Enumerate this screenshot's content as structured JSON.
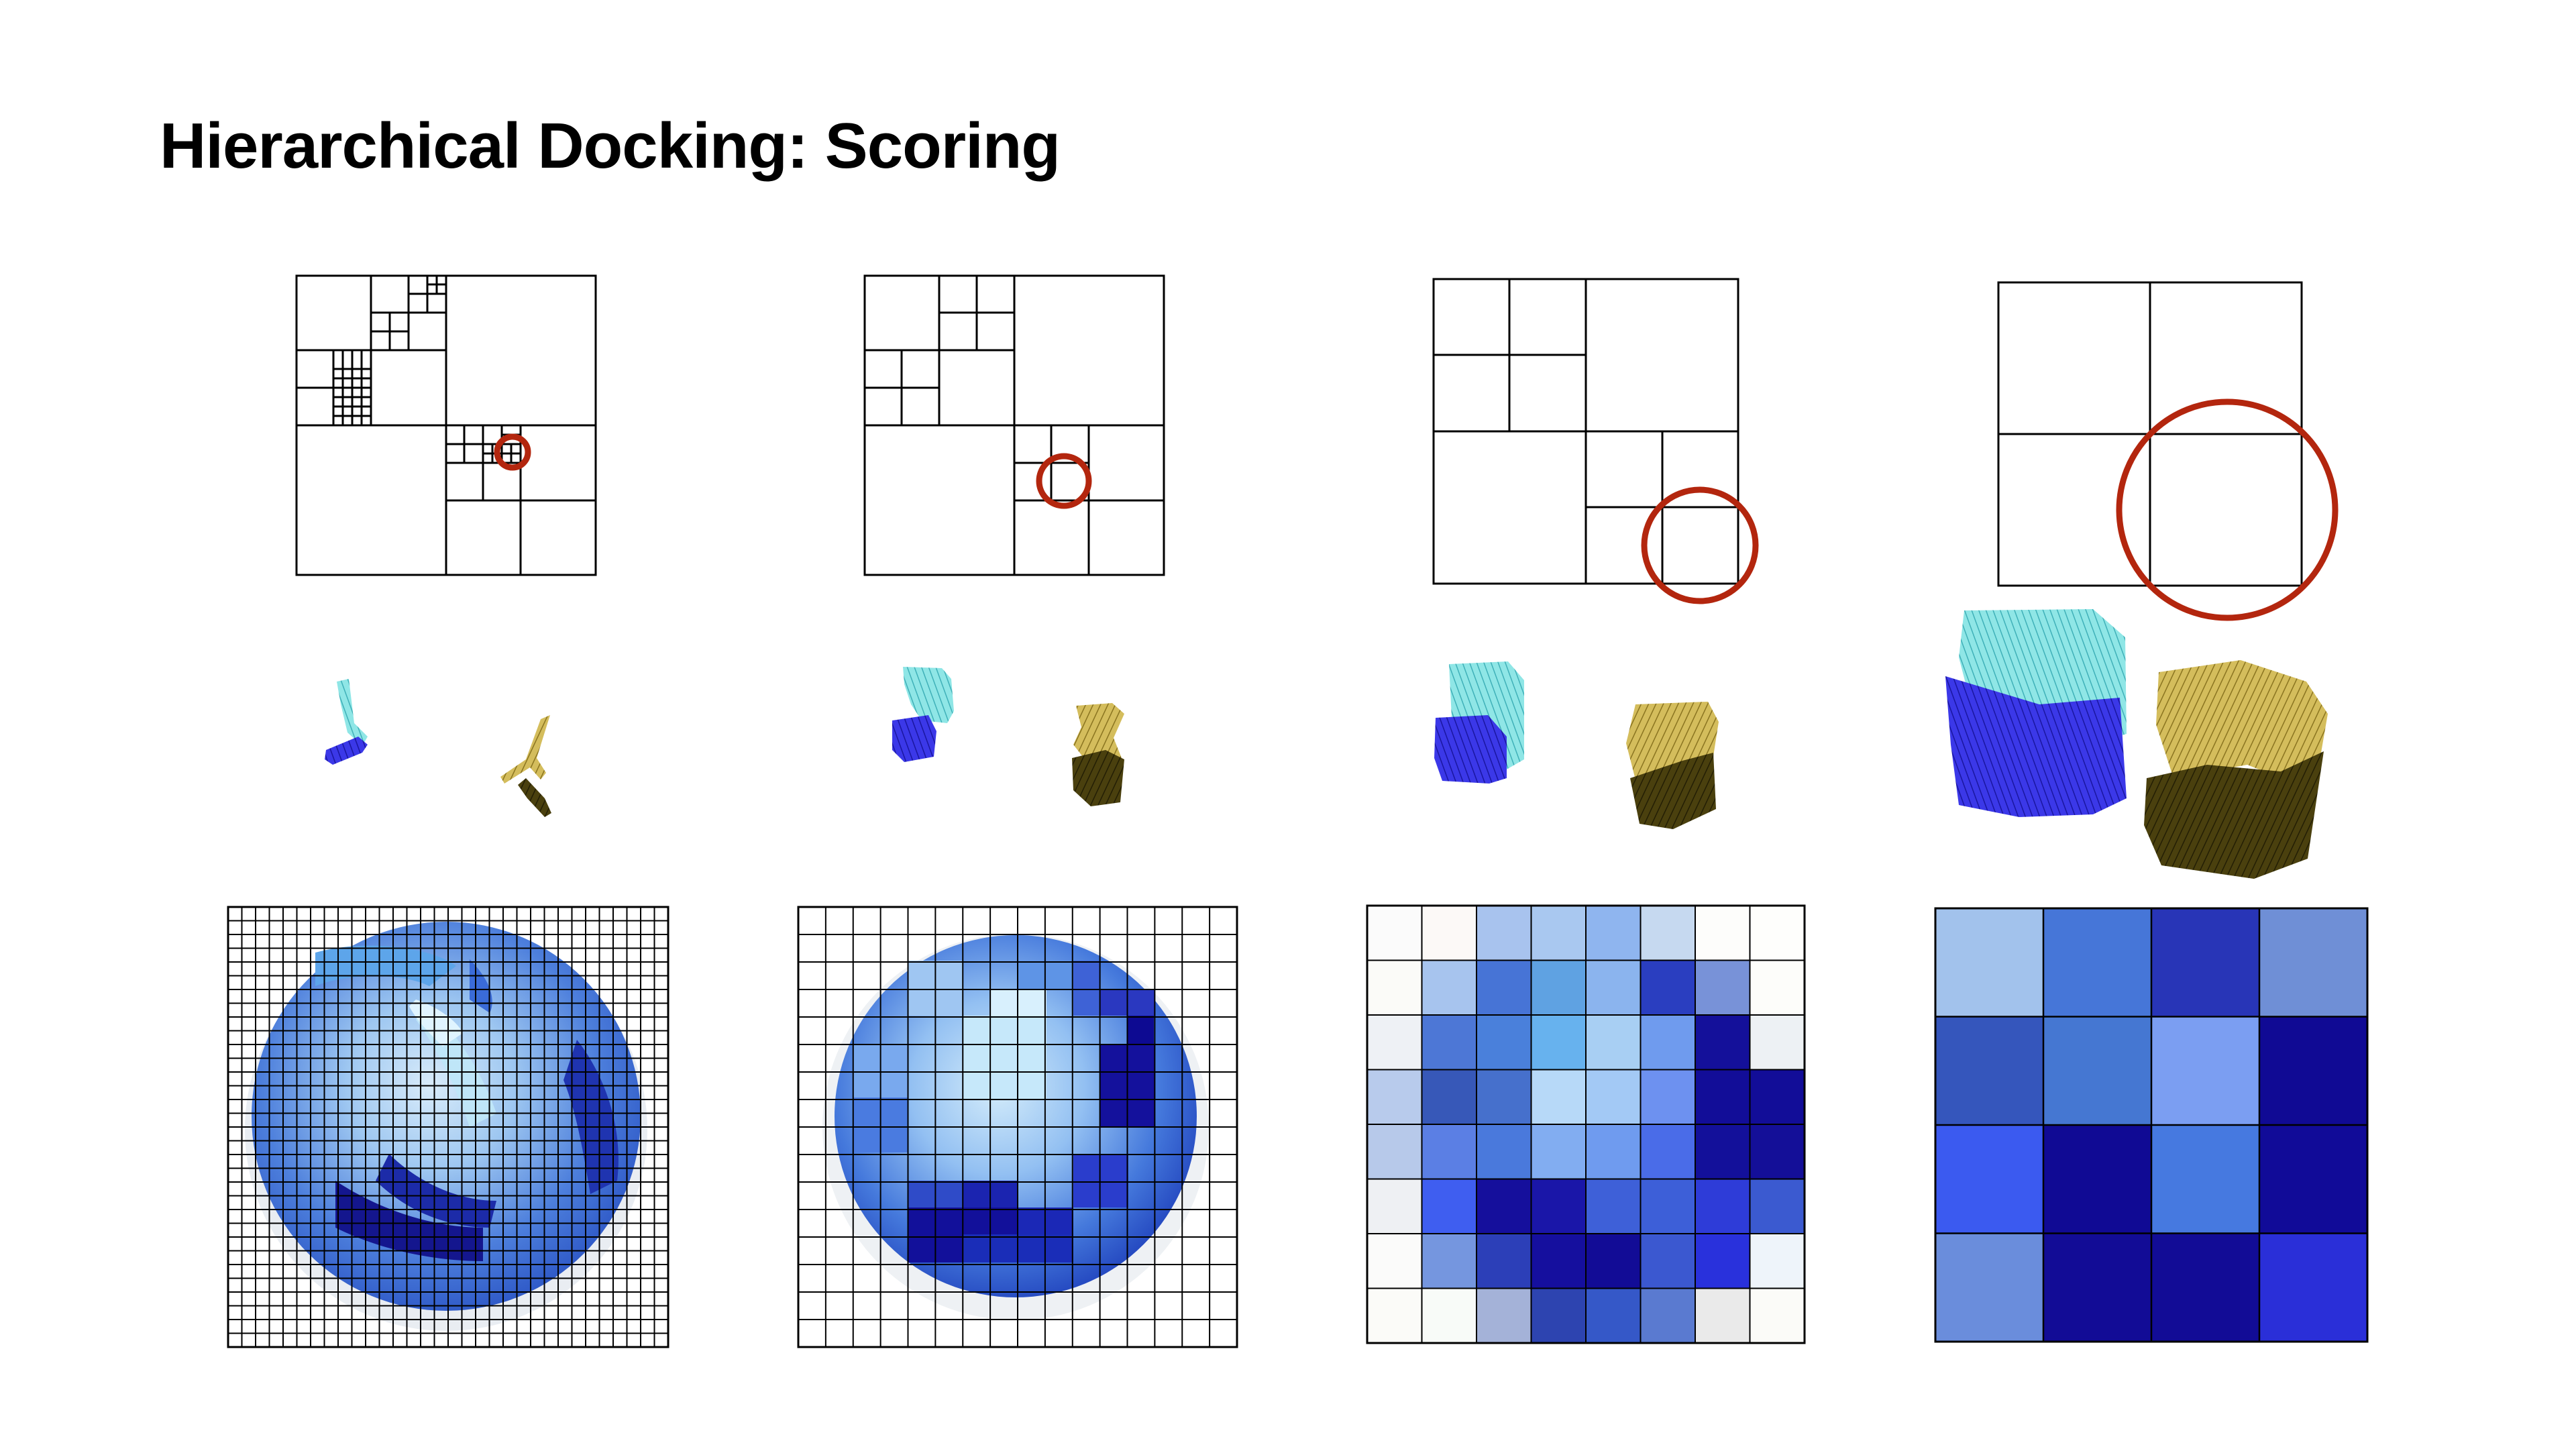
{
  "slide": {
    "title": "Hierarchical Docking: Scoring"
  },
  "colors": {
    "highlight_circle": "#b3260e",
    "receptor_light": "#7fe0e0",
    "receptor_dark": "#2a25d6",
    "ligand_light": "#c9b048",
    "ligand_dark": "#3a3208",
    "grid_line": "#000000"
  },
  "columns": [
    {
      "level": "finest",
      "octree_highlight": "small circle",
      "score_grid_cells": 32
    },
    {
      "level": "fine",
      "octree_highlight": "small circle",
      "score_grid_cells": 16
    },
    {
      "level": "medium",
      "octree_highlight": "medium circle",
      "score_grid_cells": 8
    },
    {
      "level": "coarse",
      "octree_highlight": "large circle",
      "score_grid_cells": 4
    }
  ],
  "score_grids": {
    "grid8": [
      [
        "#fbfbfb",
        "#fcf9f7",
        "#a8c3ee",
        "#a9c8f0",
        "#8fb5ef",
        "#c6d9f0",
        "#fdfdfb",
        "#fefefc"
      ],
      [
        "#fbfbf8",
        "#a7c4ee",
        "#4774d6",
        "#5fa2e2",
        "#8bb4ee",
        "#2a3ec0",
        "#7892d8",
        "#fdfdfa"
      ],
      [
        "#eef1f5",
        "#4d77d6",
        "#4a80db",
        "#67b2ee",
        "#a8cff3",
        "#6f9bee",
        "#14109a",
        "#edf1f4"
      ],
      [
        "#b8cbec",
        "#3758b8",
        "#4670cc",
        "#b7d9f8",
        "#a3c9f5",
        "#6d91f0",
        "#120d98",
        "#120d98"
      ],
      [
        "#b7c9ea",
        "#5b7fe4",
        "#4a79dc",
        "#82adf1",
        "#6f9bef",
        "#4a6ce8",
        "#13109a",
        "#140f98"
      ],
      [
        "#eef0f3",
        "#3f5ef0",
        "#150f9c",
        "#1a16a8",
        "#3e60d8",
        "#3d5fd8",
        "#2e3cd8",
        "#3b5ad0"
      ],
      [
        "#fbfbfa",
        "#7596df",
        "#2c3fb8",
        "#150f9e",
        "#120c96",
        "#3b58d0",
        "#2931dc",
        "#eef4fa"
      ],
      [
        "#fbfbf8",
        "#f8fbf8",
        "#a4b2d8",
        "#2d44b0",
        "#3558c8",
        "#5a7ad0",
        "#eaeaea",
        "#fbfbf8"
      ]
    ],
    "grid4": [
      [
        "#a2c2ec",
        "#4676d8",
        "#2835b7",
        "#6f8fd6"
      ],
      [
        "#3556bc",
        "#4577d2",
        "#7b9ef2",
        "#100a94"
      ],
      [
        "#3b5af0",
        "#100a94",
        "#4679e0",
        "#110b98"
      ],
      [
        "#6a8ddc",
        "#120c96",
        "#120c96",
        "#2a2fd8"
      ]
    ]
  }
}
